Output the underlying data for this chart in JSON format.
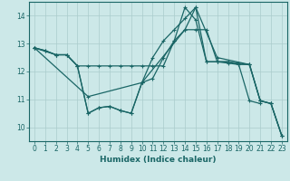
{
  "xlabel": "Humidex (Indice chaleur)",
  "xlim": [
    -0.5,
    23.5
  ],
  "ylim": [
    9.5,
    14.5
  ],
  "yticks": [
    10,
    11,
    12,
    13,
    14
  ],
  "xticks": [
    0,
    1,
    2,
    3,
    4,
    5,
    6,
    7,
    8,
    9,
    10,
    11,
    12,
    13,
    14,
    15,
    16,
    17,
    18,
    19,
    20,
    21,
    22,
    23
  ],
  "background_color": "#cce8e8",
  "line_color": "#1a6666",
  "grid_color": "#aacccc",
  "lines": [
    {
      "x": [
        0,
        2,
        3,
        4,
        5,
        6,
        7,
        8,
        9,
        10,
        11,
        12,
        13,
        14,
        15,
        16,
        17,
        18,
        19,
        20,
        21,
        22,
        23
      ],
      "y": [
        12.85,
        12.6,
        12.6,
        12.2,
        12.2,
        12.2,
        12.2,
        12.2,
        12.2,
        12.2,
        12.2,
        12.2,
        13.1,
        13.5,
        13.5,
        13.5,
        12.35,
        12.35,
        12.3,
        12.25,
        10.95,
        10.85,
        9.7
      ]
    },
    {
      "x": [
        0,
        1,
        2,
        3,
        4,
        5,
        6,
        7,
        8,
        9,
        10,
        11,
        12,
        13,
        14,
        15,
        16,
        17,
        18,
        19,
        20,
        21,
        22,
        23
      ],
      "y": [
        12.85,
        12.75,
        12.6,
        12.6,
        12.2,
        10.5,
        10.7,
        10.75,
        10.6,
        10.5,
        11.6,
        11.75,
        12.5,
        13.1,
        14.3,
        13.85,
        12.35,
        12.35,
        12.3,
        12.25,
        10.95,
        10.85,
        null,
        null
      ]
    },
    {
      "x": [
        0,
        1,
        2,
        3,
        4,
        5,
        6,
        7,
        8,
        9,
        10,
        11,
        12,
        13,
        14,
        15,
        16,
        17,
        18,
        19,
        20,
        21,
        22,
        23
      ],
      "y": [
        12.85,
        12.75,
        12.6,
        12.6,
        12.2,
        10.5,
        10.7,
        10.75,
        10.6,
        10.5,
        11.6,
        12.5,
        13.1,
        13.5,
        13.9,
        14.3,
        12.35,
        12.35,
        12.35,
        12.25,
        12.25,
        10.95,
        10.85,
        9.7
      ]
    },
    {
      "x": [
        0,
        5,
        10,
        14,
        15,
        17,
        20,
        21,
        22,
        23
      ],
      "y": [
        12.85,
        11.1,
        11.6,
        13.5,
        14.3,
        12.5,
        12.25,
        10.95,
        10.85,
        9.7
      ]
    }
  ]
}
